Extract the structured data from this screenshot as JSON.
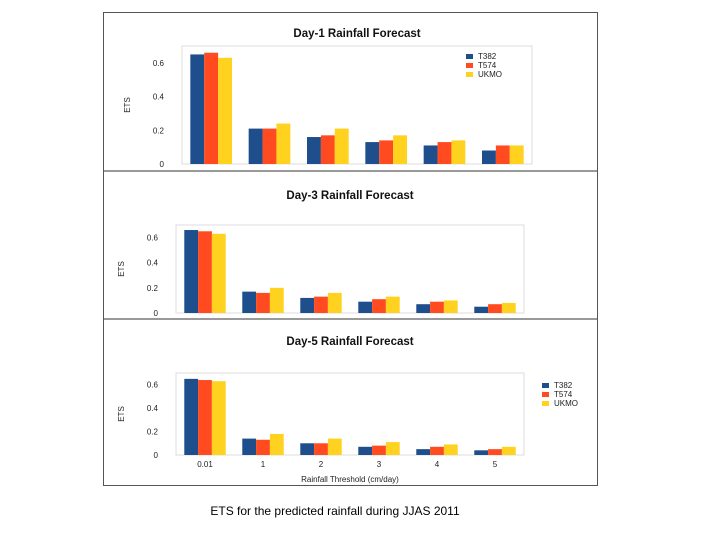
{
  "caption": "ETS for the predicted rainfall during JJAS 2011",
  "chart_data": [
    {
      "type": "bar",
      "title": "Day-1 Rainfall Forecast",
      "ylabel": "ETS",
      "xlabel": "",
      "categories": [
        "0.01",
        "1",
        "2",
        "3",
        "4",
        "5"
      ],
      "show_x_ticks": false,
      "ylim": [
        0,
        0.7
      ],
      "yticks": [
        "0",
        "0.2",
        "0.4",
        "0.6"
      ],
      "legend": "top-right",
      "series": [
        {
          "name": "T382",
          "color": "#1f4e8c",
          "values": [
            0.65,
            0.21,
            0.16,
            0.13,
            0.11,
            0.08
          ]
        },
        {
          "name": "T574",
          "color": "#ff4b1f",
          "values": [
            0.66,
            0.21,
            0.17,
            0.14,
            0.13,
            0.11
          ]
        },
        {
          "name": "UKMO",
          "color": "#ffd21f",
          "values": [
            0.63,
            0.24,
            0.21,
            0.17,
            0.14,
            0.11
          ]
        }
      ]
    },
    {
      "type": "bar",
      "title": "Day-3 Rainfall Forecast",
      "ylabel": "ETS",
      "xlabel": "",
      "categories": [
        "0.01",
        "1",
        "2",
        "3",
        "4",
        "5"
      ],
      "show_x_ticks": false,
      "ylim": [
        0,
        0.7
      ],
      "yticks": [
        "0",
        "0.2",
        "0.4",
        "0.6"
      ],
      "legend": "none",
      "series": [
        {
          "name": "T382",
          "color": "#1f4e8c",
          "values": [
            0.66,
            0.17,
            0.12,
            0.09,
            0.07,
            0.05
          ]
        },
        {
          "name": "T574",
          "color": "#ff4b1f",
          "values": [
            0.65,
            0.16,
            0.13,
            0.11,
            0.09,
            0.07
          ]
        },
        {
          "name": "UKMO",
          "color": "#ffd21f",
          "values": [
            0.63,
            0.2,
            0.16,
            0.13,
            0.1,
            0.08
          ]
        }
      ]
    },
    {
      "type": "bar",
      "title": "Day-5 Rainfall Forecast",
      "ylabel": "ETS",
      "xlabel": "Rainfall Threshold (cm/day)",
      "categories": [
        "0.01",
        "1",
        "2",
        "3",
        "4",
        "5"
      ],
      "show_x_ticks": true,
      "ylim": [
        0,
        0.7
      ],
      "yticks": [
        "0",
        "0.2",
        "0.4",
        "0.6"
      ],
      "legend": "right",
      "series": [
        {
          "name": "T382",
          "color": "#1f4e8c",
          "values": [
            0.65,
            0.14,
            0.1,
            0.07,
            0.05,
            0.04
          ]
        },
        {
          "name": "T574",
          "color": "#ff4b1f",
          "values": [
            0.64,
            0.13,
            0.1,
            0.08,
            0.07,
            0.05
          ]
        },
        {
          "name": "UKMO",
          "color": "#ffd21f",
          "values": [
            0.63,
            0.18,
            0.14,
            0.11,
            0.09,
            0.07
          ]
        }
      ]
    }
  ]
}
